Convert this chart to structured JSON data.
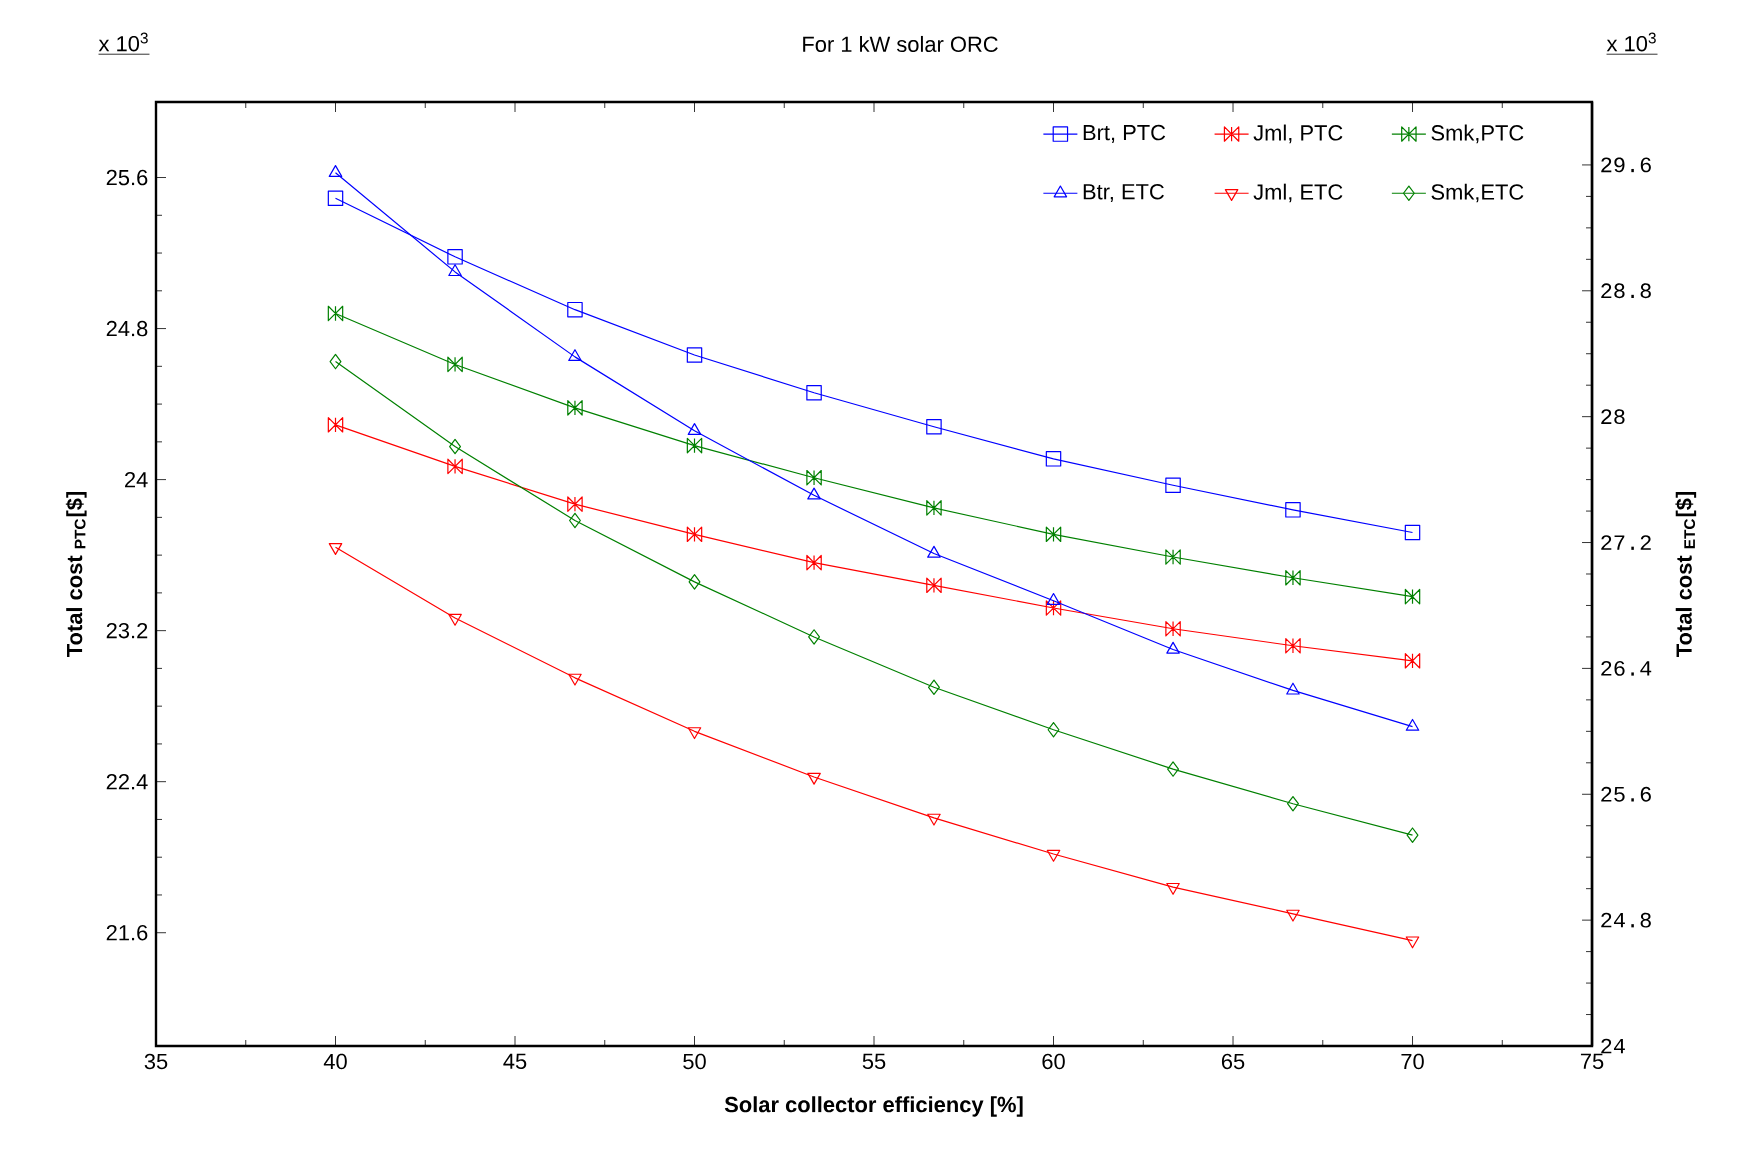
{
  "chart_data": {
    "type": "line",
    "title": "For 1 kW solar ORC",
    "xlabel": "Solar collector efficiency [%]",
    "ylabel": "Total cost $_{PTC}$[$]",
    "y2label": "Total cost $_{ETC}$[$]",
    "annotations": [
      "x 10$^{3}$",
      "x 10$^{3}$"
    ],
    "x": [
      40,
      43.33,
      46.67,
      50,
      53.33,
      56.67,
      60,
      63.33,
      66.67,
      70
    ],
    "xlim": [
      35,
      75
    ],
    "xticks": [
      35,
      40,
      45,
      50,
      55,
      60,
      65,
      70,
      75
    ],
    "ylim": [
      21,
      26
    ],
    "yticks": [
      21.6,
      22.4,
      23.2,
      24,
      24.8,
      25.6
    ],
    "y2lim": [
      24,
      30
    ],
    "y2ticks": [
      24,
      24.8,
      25.6,
      26.4,
      27.2,
      28,
      28.8,
      29.6
    ],
    "legend": "top right",
    "grid": false,
    "line_style": "solid",
    "series": [
      {
        "name": "Brt, PTC",
        "color": "#0000ff",
        "marker": "square",
        "values": [
          25.49,
          25.18,
          24.9,
          24.66,
          24.46,
          24.28,
          24.11,
          23.97,
          23.84,
          23.72
        ]
      },
      {
        "name": "Jml, PTC",
        "color": "#ff0000",
        "marker": "cross",
        "values": [
          24.29,
          24.07,
          23.87,
          23.71,
          23.56,
          23.44,
          23.32,
          23.21,
          23.12,
          23.04
        ]
      },
      {
        "name": "Smk,PTC",
        "color": "#008000",
        "marker": "cross",
        "values": [
          24.88,
          24.61,
          24.38,
          24.18,
          24.01,
          23.85,
          23.71,
          23.59,
          23.48,
          23.38
        ]
      },
      {
        "name": "Btr, ETC",
        "color": "#0000ff",
        "marker": "triangle",
        "axis": "y2",
        "values": [
          29.55,
          28.92,
          28.38,
          27.91,
          27.5,
          27.13,
          26.83,
          26.52,
          26.26,
          26.03
        ]
      },
      {
        "name": "Jml, ETC",
        "color": "#ff0000",
        "marker": "triangle-down",
        "axis": "y2",
        "values": [
          27.17,
          26.72,
          26.34,
          26.0,
          25.71,
          25.45,
          25.22,
          25.01,
          24.84,
          24.67
        ]
      },
      {
        "name": "Smk,ETC",
        "color": "#008000",
        "marker": "diamond",
        "axis": "y2",
        "values": [
          28.35,
          27.81,
          27.34,
          26.95,
          26.6,
          26.28,
          26.01,
          25.76,
          25.54,
          25.34
        ]
      }
    ]
  }
}
